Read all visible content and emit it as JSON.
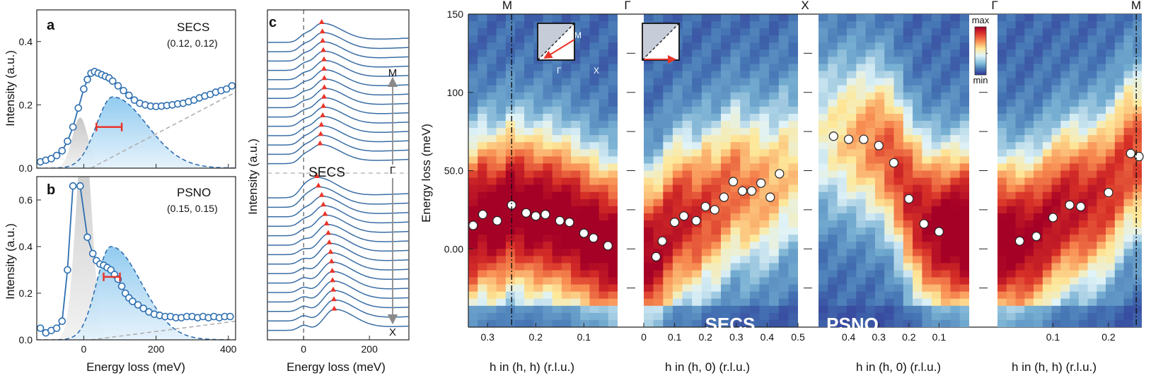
{
  "figure": {
    "panel_labels": {
      "a": "a",
      "b": "b",
      "c": "c",
      "d": "d",
      "e": "e"
    },
    "colorbar": {
      "max": "max",
      "min": "min"
    }
  },
  "chart_data": [
    {
      "id": "a",
      "type": "line",
      "sample": "SECS",
      "q_label": "(0.12, 0.12)",
      "xlabel": "Energy loss (meV)",
      "ylabel": "Intensity (a.u.)",
      "xlim": [
        -130,
        420
      ],
      "ylim": [
        0,
        0.5
      ],
      "xticks": [
        0,
        200,
        400
      ],
      "yticks": [
        0.0,
        0.2,
        0.4
      ],
      "series": [
        {
          "values": [
            [
              -120,
              0.02
            ],
            [
              -105,
              0.025
            ],
            [
              -90,
              0.03
            ],
            [
              -75,
              0.04
            ],
            [
              -60,
              0.055
            ],
            [
              -45,
              0.085
            ],
            [
              -30,
              0.13
            ],
            [
              -15,
              0.19
            ],
            [
              0,
              0.25
            ],
            [
              10,
              0.28
            ],
            [
              20,
              0.3
            ],
            [
              30,
              0.305
            ],
            [
              40,
              0.3
            ],
            [
              50,
              0.295
            ],
            [
              60,
              0.29
            ],
            [
              70,
              0.285
            ],
            [
              80,
              0.275
            ],
            [
              95,
              0.26
            ],
            [
              110,
              0.245
            ],
            [
              125,
              0.23
            ],
            [
              140,
              0.215
            ],
            [
              155,
              0.205
            ],
            [
              170,
              0.2
            ],
            [
              185,
              0.196
            ],
            [
              200,
              0.195
            ],
            [
              215,
              0.196
            ],
            [
              230,
              0.198
            ],
            [
              245,
              0.2
            ],
            [
              260,
              0.203
            ],
            [
              275,
              0.205
            ],
            [
              290,
              0.21
            ],
            [
              305,
              0.215
            ],
            [
              320,
              0.222
            ],
            [
              335,
              0.228
            ],
            [
              350,
              0.233
            ],
            [
              365,
              0.24
            ],
            [
              380,
              0.245
            ],
            [
              395,
              0.25
            ],
            [
              410,
              0.26
            ]
          ]
        }
      ],
      "peaks": {
        "elastic": {
          "center": -10,
          "height": 0.16,
          "width": 22
        },
        "magnon": {
          "center": 80,
          "height": 0.225,
          "width_left": 45,
          "width_right": 95
        },
        "background": {
          "from": [
            20,
            0.0
          ],
          "to": [
            420,
            0.24
          ]
        }
      },
      "resolution_bar": {
        "x0": 35,
        "x1": 105,
        "y": 0.13
      }
    },
    {
      "id": "b",
      "type": "line",
      "sample": "PSNO",
      "q_label": "(0.15, 0.15)",
      "xlabel": "Energy loss (meV)",
      "ylabel": "Intensity (a.u.)",
      "xlim": [
        -130,
        420
      ],
      "ylim": [
        0,
        0.7
      ],
      "xticks": [
        0,
        200,
        400
      ],
      "yticks": [
        0.0,
        0.2,
        0.4,
        0.6
      ],
      "series": [
        {
          "values": [
            [
              -120,
              0.05
            ],
            [
              -105,
              0.03
            ],
            [
              -90,
              0.04
            ],
            [
              -75,
              0.05
            ],
            [
              -60,
              0.08
            ],
            [
              -45,
              0.3
            ],
            [
              -30,
              0.66
            ],
            [
              -10,
              0.66
            ],
            [
              10,
              0.44
            ],
            [
              25,
              0.37
            ],
            [
              35,
              0.34
            ],
            [
              45,
              0.325
            ],
            [
              55,
              0.32
            ],
            [
              65,
              0.31
            ],
            [
              75,
              0.3
            ],
            [
              85,
              0.28
            ],
            [
              95,
              0.26
            ],
            [
              105,
              0.23
            ],
            [
              115,
              0.2
            ],
            [
              125,
              0.18
            ],
            [
              135,
              0.165
            ],
            [
              150,
              0.15
            ],
            [
              165,
              0.135
            ],
            [
              180,
              0.12
            ],
            [
              195,
              0.11
            ],
            [
              210,
              0.105
            ],
            [
              225,
              0.1
            ],
            [
              240,
              0.1
            ],
            [
              255,
              0.095
            ],
            [
              270,
              0.095
            ],
            [
              285,
              0.1
            ],
            [
              300,
              0.1
            ],
            [
              315,
              0.095
            ],
            [
              330,
              0.1
            ],
            [
              345,
              0.095
            ],
            [
              360,
              0.1
            ],
            [
              375,
              0.095
            ],
            [
              390,
              0.1
            ],
            [
              405,
              0.1
            ]
          ]
        }
      ],
      "peaks": {
        "elastic": {
          "center": 0,
          "height": 0.9,
          "width": 22
        },
        "magnon": {
          "center": 75,
          "height": 0.4,
          "width_left": 40,
          "width_right": 85
        },
        "background": {
          "from": [
            20,
            0.0
          ],
          "to": [
            420,
            0.08
          ]
        }
      },
      "resolution_bar": {
        "x0": 55,
        "x1": 100,
        "y": 0.27
      }
    },
    {
      "id": "c",
      "type": "line",
      "xlabel": "Energy loss (meV)",
      "ylabel": "Intensity (a.u.)",
      "xlim": [
        -110,
        320
      ],
      "xticks": [
        0,
        200
      ],
      "sample_label": "SECS",
      "path_labels": {
        "top": "M",
        "middle": "Γ",
        "bottom": "X"
      },
      "upper_peaks": [
        55,
        57,
        58,
        60,
        62,
        62,
        63,
        63,
        62,
        60,
        58,
        54,
        52,
        50
      ],
      "lower_peaks": [
        40,
        45,
        55,
        60,
        65,
        70,
        75,
        78,
        82,
        85,
        87,
        88,
        90,
        92,
        93
      ]
    },
    {
      "id": "d",
      "type": "heatmap",
      "ylabel": "Energy loss (meV)",
      "yticks": [
        0,
        50,
        100,
        150
      ],
      "ytick_labels": [
        "0.00",
        "50.0",
        "100",
        "150"
      ],
      "ylim": [
        -50,
        150
      ],
      "sample_label": "SECS",
      "top_labels": [
        "M",
        "Γ",
        "X"
      ],
      "left": {
        "xlabel": "h in (h, h) (r.l.u.)",
        "xlim": [
          0.34,
          0.03
        ],
        "xticks": [
          0.3,
          0.2,
          0.1
        ],
        "dispersion": [
          [
            0.33,
            15
          ],
          [
            0.31,
            22
          ],
          [
            0.28,
            18
          ],
          [
            0.25,
            28
          ],
          [
            0.22,
            23
          ],
          [
            0.2,
            21
          ],
          [
            0.18,
            22
          ],
          [
            0.15,
            18
          ],
          [
            0.13,
            17
          ],
          [
            0.1,
            10
          ],
          [
            0.08,
            7
          ],
          [
            0.05,
            2
          ]
        ],
        "m_line": 0.25
      },
      "right": {
        "xlabel": "h in (h, 0) (r.l.u.)",
        "xlim": [
          0.0,
          0.5
        ],
        "xticks": [
          0,
          0.1,
          0.2,
          0.3,
          0.4,
          0.5
        ],
        "dispersion": [
          [
            0.04,
            -5
          ],
          [
            0.06,
            5
          ],
          [
            0.1,
            17
          ],
          [
            0.13,
            21
          ],
          [
            0.17,
            18
          ],
          [
            0.2,
            27
          ],
          [
            0.23,
            25
          ],
          [
            0.26,
            33
          ],
          [
            0.29,
            43
          ],
          [
            0.32,
            37
          ],
          [
            0.35,
            37
          ],
          [
            0.38,
            42
          ],
          [
            0.41,
            33
          ],
          [
            0.44,
            48
          ]
        ]
      }
    },
    {
      "id": "e",
      "type": "heatmap",
      "ylabel": "",
      "ylim": [
        -50,
        150
      ],
      "sample_label": "PSNO",
      "top_labels": [
        "Γ",
        "M"
      ],
      "left": {
        "xlabel": "h in (h, 0) (r.l.u.)",
        "xlim": [
          0.5,
          0.0
        ],
        "xticks": [
          0.4,
          0.3,
          0.2,
          0.1
        ],
        "dispersion": [
          [
            0.45,
            72
          ],
          [
            0.4,
            70
          ],
          [
            0.35,
            70
          ],
          [
            0.3,
            66
          ],
          [
            0.25,
            55
          ],
          [
            0.2,
            32
          ],
          [
            0.15,
            16
          ],
          [
            0.1,
            11
          ]
        ]
      },
      "right": {
        "xlabel": "h in (h, h) (r.l.u.)",
        "xlim": [
          0.0,
          0.26
        ],
        "xticks": [
          0.1,
          0.2
        ],
        "dispersion": [
          [
            0.04,
            5
          ],
          [
            0.07,
            8
          ],
          [
            0.1,
            20
          ],
          [
            0.13,
            28
          ],
          [
            0.15,
            27
          ],
          [
            0.2,
            36
          ],
          [
            0.24,
            61
          ],
          [
            0.255,
            59
          ]
        ],
        "m_line": 0.25
      }
    }
  ],
  "insets": {
    "d_left": {
      "M": "M",
      "Γ": "Γ",
      "X": "X"
    }
  }
}
